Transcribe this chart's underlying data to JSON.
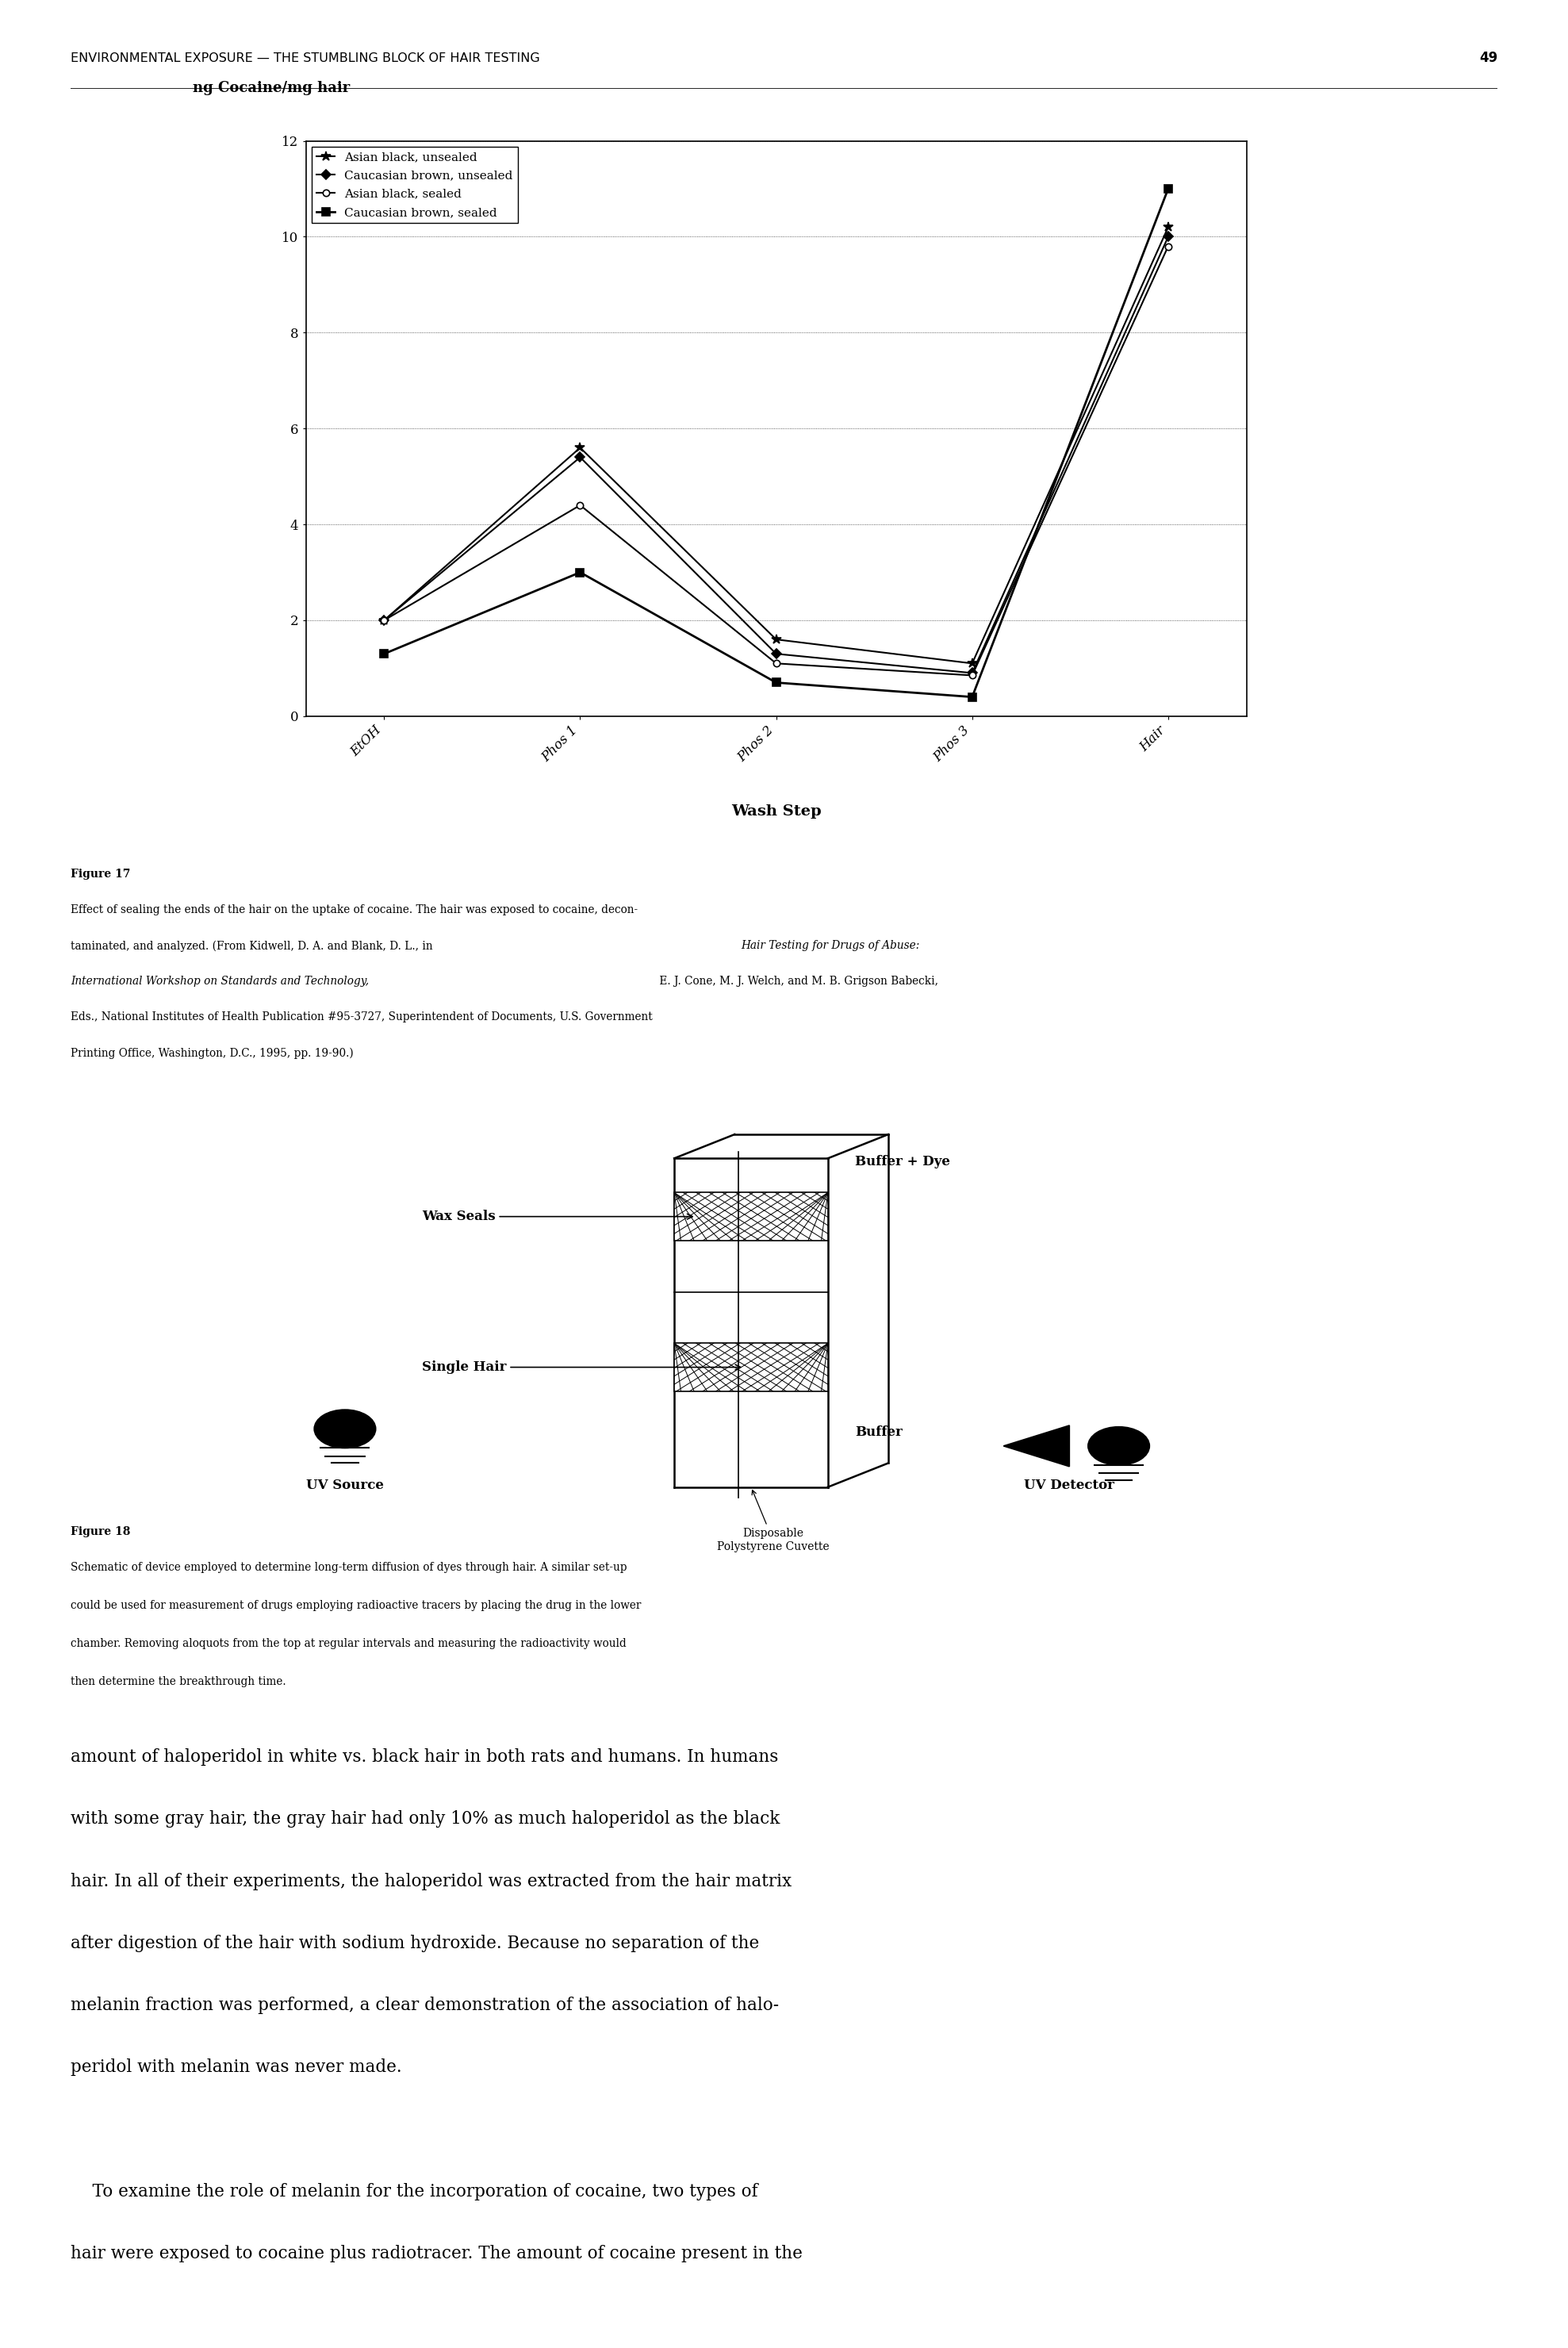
{
  "page_header": "ENVIRONMENTAL EXPOSURE — THE STUMBLING BLOCK OF HAIR TESTING",
  "page_number": "49",
  "fig17_title": "ng Cocaine/mg hair",
  "fig17_xlabel": "Wash Step",
  "fig17_xticks": [
    "EtOH",
    "Phos 1",
    "Phos 2",
    "Phos 3",
    "Hair"
  ],
  "fig17_yticks": [
    0,
    2,
    4,
    6,
    8,
    10,
    12
  ],
  "fig17_ylim": [
    0,
    12
  ],
  "fig17_series": {
    "Asian black, unsealed": [
      2.0,
      5.6,
      1.6,
      1.1,
      10.2
    ],
    "Caucasian brown, unsealed": [
      2.0,
      5.4,
      1.3,
      0.9,
      10.0
    ],
    "Asian black, sealed": [
      2.0,
      4.4,
      1.1,
      0.85,
      9.8
    ],
    "Caucasian brown, sealed": [
      1.3,
      3.0,
      0.7,
      0.4,
      11.0
    ]
  },
  "fig17_caption_bold": "Figure 17",
  "fig18_caption_bold": "Figure 18",
  "background_color": "#ffffff",
  "text_color": "#000000"
}
